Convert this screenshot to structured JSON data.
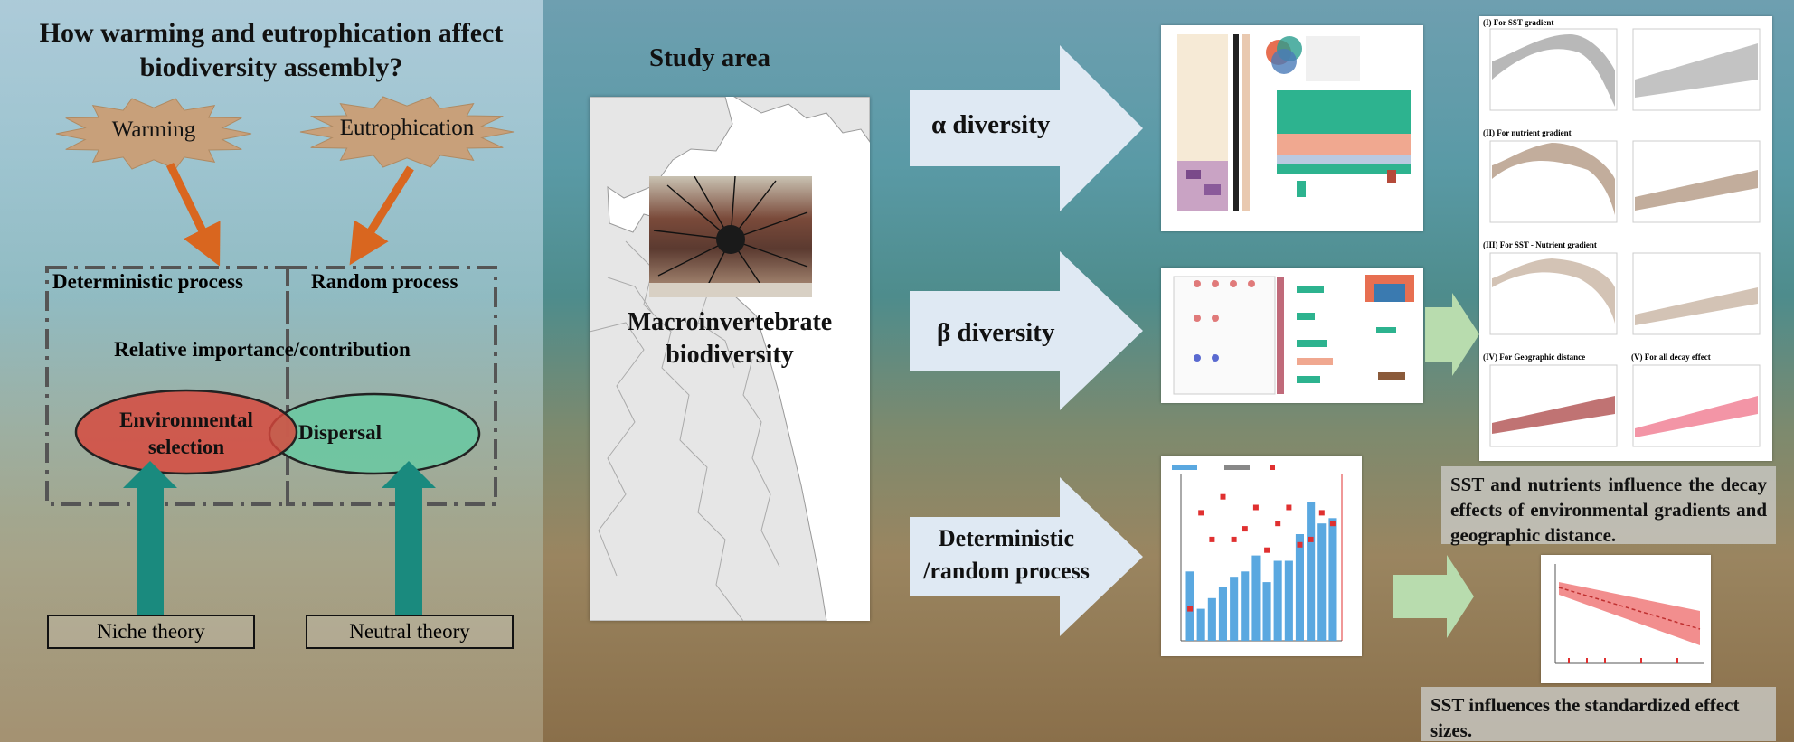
{
  "left": {
    "title": "How warming and eutrophication affect biodiversity assembly?",
    "burst_warming": "Warming",
    "burst_eutrophication": "Eutrophication",
    "deterministic_process": "Deterministic process",
    "random_process": "Random process",
    "relative_importance": "Relative importance/contribution",
    "environmental_selection": "Environmental selection",
    "dispersal": "Dispersal",
    "niche_theory": "Niche theory",
    "neutral_theory": "Neutral theory"
  },
  "middle": {
    "study_area": "Study area",
    "macro_label": "Macroinvertebrate biodiversity"
  },
  "flow": {
    "alpha": "α diversity",
    "beta": "β diversity",
    "det_random": "Deterministic /random process"
  },
  "right": {
    "panel_i": "(I) For SST gradient",
    "panel_ii": "(II) For nutrient gradient",
    "panel_iii": "(III) For SST - Nutrient gradient",
    "panel_iv": "(IV) For Geographic distance",
    "panel_v": "(V) For all decay effect",
    "caption1": "SST and nutrients influence the decay effects of environmental gradients and geographic distance.",
    "caption2": "SST influences the standardized effect sizes."
  },
  "colors": {
    "burst": "#c8a07a",
    "arrow_orange": "#d9661f",
    "arrow_teal": "#1a8a7e",
    "env_selection": "#d9473c",
    "dispersal": "#6dc7a2",
    "flow_arrow": "#dfe9f3",
    "green_arrow": "#b8dcae"
  },
  "chart_data": {
    "type": "bar",
    "values": [
      6.5,
      3,
      4,
      5,
      6,
      6.5,
      8,
      5.5,
      7.5,
      7.5,
      10,
      13,
      11,
      11.5
    ],
    "points": [
      3,
      12,
      9.5,
      13.5,
      9.5,
      10.5,
      12.5,
      8.5,
      11,
      12.5,
      9,
      9.5,
      12,
      11
    ],
    "ylim": [
      0,
      15
    ]
  }
}
